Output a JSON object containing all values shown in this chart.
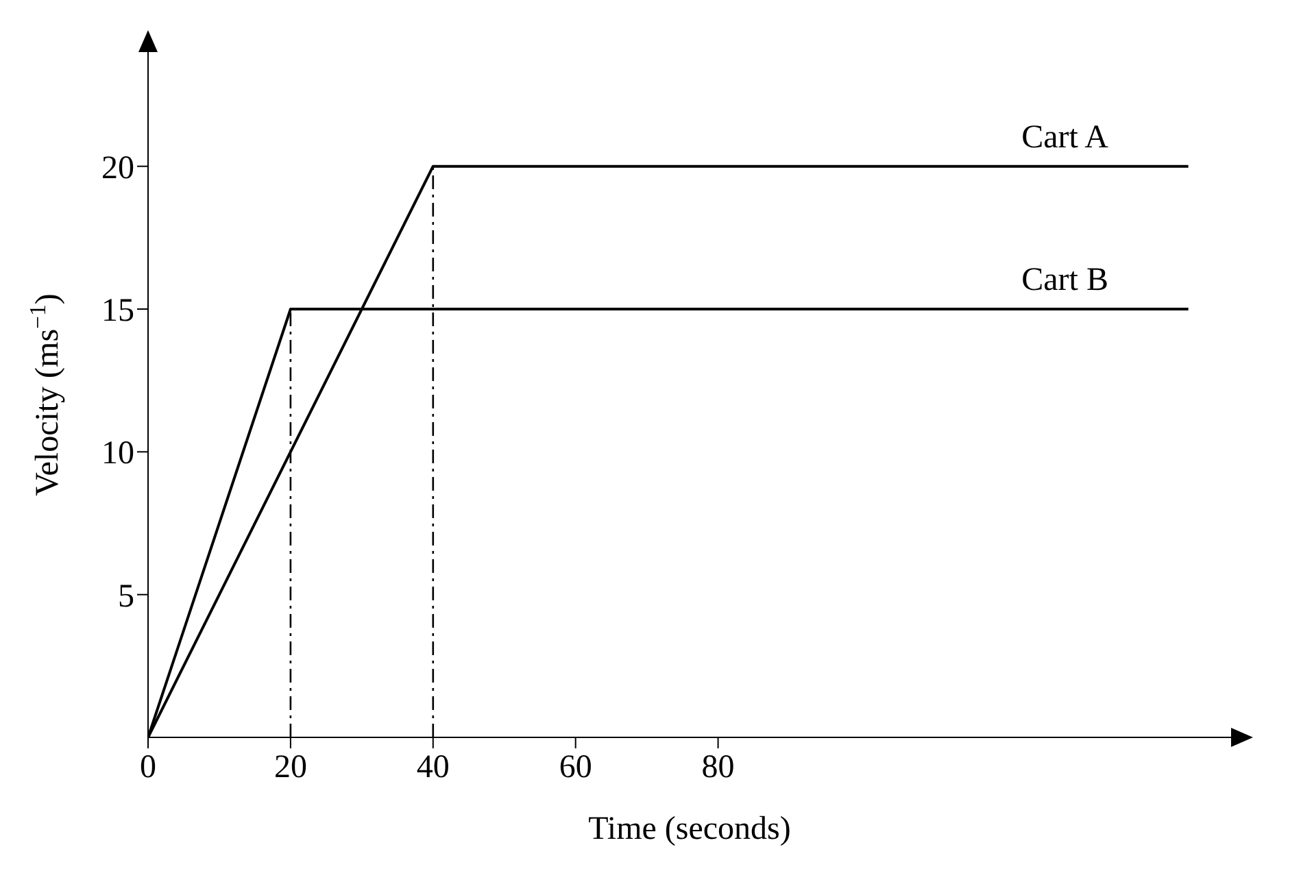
{
  "chart_data": {
    "type": "line",
    "xlabel": "Time (seconds)",
    "ylabel": "Velocity (ms$^{−1}$)",
    "xlim": [
      0,
      152
    ],
    "ylim": [
      0,
      24
    ],
    "xticks": [
      0,
      20,
      40,
      60,
      80
    ],
    "yticks": [
      5,
      10,
      15,
      20
    ],
    "series": [
      {
        "name": "Cart A",
        "color": "#000000",
        "x": [
          0,
          40,
          146
        ],
        "values": [
          0,
          20,
          20
        ]
      },
      {
        "name": "Cart B",
        "color": "#000000",
        "x": [
          0,
          20,
          146
        ],
        "values": [
          0,
          15,
          15
        ]
      }
    ],
    "ref_lines": [
      {
        "axis": "x",
        "value": 20,
        "line_style": "dashed",
        "color": "#000000"
      },
      {
        "axis": "x",
        "value": 40,
        "line_style": "dashed",
        "color": "#000000"
      }
    ],
    "marker": "none",
    "line_style": "solid",
    "grid": false
  }
}
